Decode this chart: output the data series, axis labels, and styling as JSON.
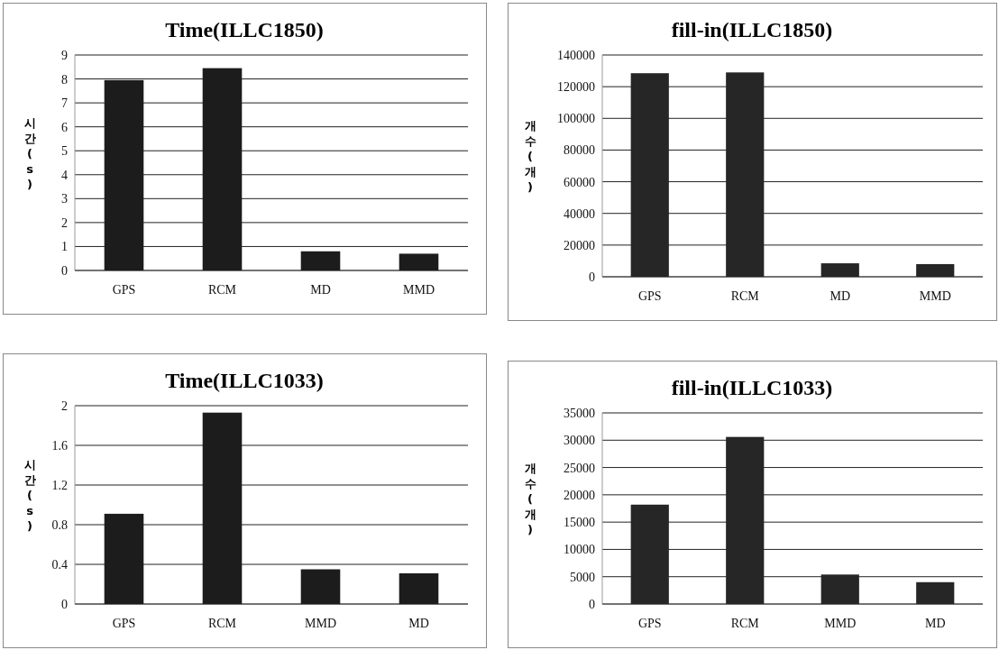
{
  "chart_data": [
    {
      "type": "bar",
      "title": "Time(ILLC1850)",
      "ylabel": "시간(s)",
      "categories": [
        "GPS",
        "RCM",
        "MD",
        "MMD"
      ],
      "values": [
        7.95,
        8.45,
        0.8,
        0.7
      ],
      "color": "#1c1c1c",
      "ylim": [
        0,
        9
      ],
      "yticks": [
        0,
        1,
        2,
        3,
        4,
        5,
        6,
        7,
        8,
        9
      ],
      "grid": "y"
    },
    {
      "type": "bar",
      "title": "fill-in(ILLC1850)",
      "ylabel": "개수(개)",
      "categories": [
        "GPS",
        "RCM",
        "MD",
        "MMD"
      ],
      "values": [
        128500,
        129000,
        8500,
        8000
      ],
      "color": "#262626",
      "ylim": [
        0,
        140000
      ],
      "yticks": [
        0,
        20000,
        40000,
        60000,
        80000,
        100000,
        120000,
        140000
      ],
      "grid": "y"
    },
    {
      "type": "bar",
      "title": "Time(ILLC1033)",
      "ylabel": "시간(s)",
      "categories": [
        "GPS",
        "RCM",
        "MMD",
        "MD"
      ],
      "values": [
        0.91,
        1.93,
        0.35,
        0.31
      ],
      "color": "#1c1c1c",
      "ylim": [
        0,
        2
      ],
      "yticks": [
        0,
        0.4,
        0.8,
        1.2,
        1.6,
        2
      ],
      "grid": "y"
    },
    {
      "type": "bar",
      "title": "fill-in(ILLC1033)",
      "ylabel": "개수(개)",
      "categories": [
        "GPS",
        "RCM",
        "MMD",
        "MD"
      ],
      "values": [
        18200,
        30600,
        5400,
        4000
      ],
      "color": "#262626",
      "ylim": [
        0,
        35000
      ],
      "yticks": [
        0,
        5000,
        10000,
        15000,
        20000,
        25000,
        30000,
        35000
      ],
      "grid": "y"
    }
  ]
}
